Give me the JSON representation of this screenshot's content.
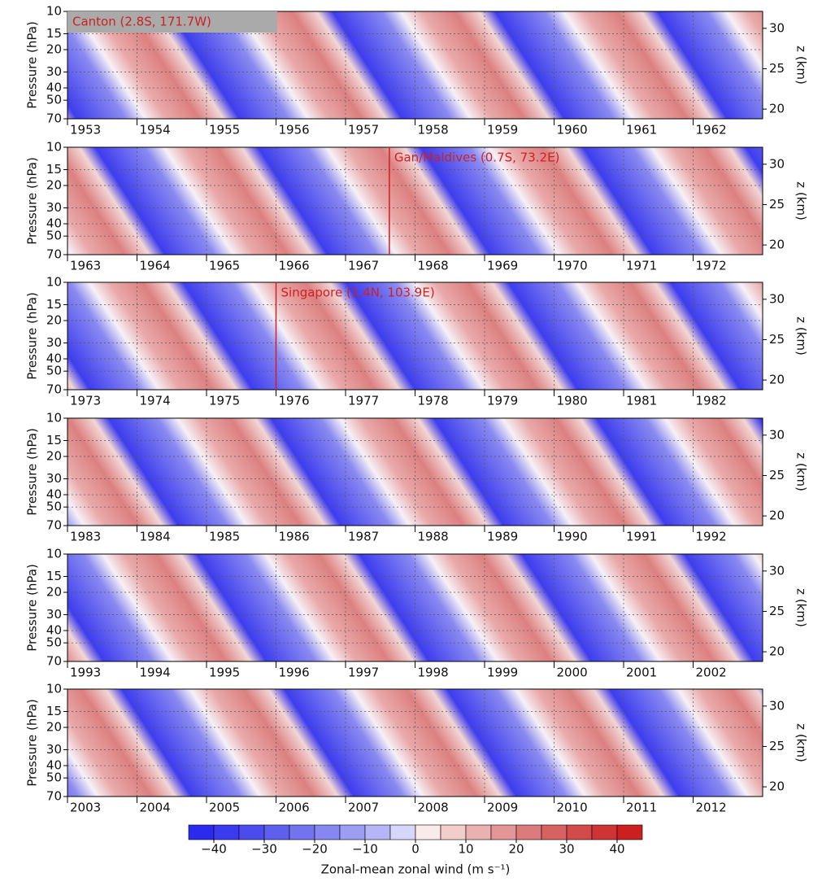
{
  "chart_data": {
    "type": "contour",
    "ylabel": "Pressure (hPa)",
    "y2label": "z (km)",
    "ylim": [
      70,
      10
    ],
    "yticks": [
      10,
      15,
      20,
      30,
      40,
      50,
      70
    ],
    "log_y": true,
    "y2lim": [
      18.8,
      32.1
    ],
    "y2ticks": [
      20,
      25,
      30
    ],
    "grid": true,
    "panels": [
      {
        "xlim": [
          1953,
          1963
        ],
        "xticks": [
          1953,
          1954,
          1955,
          1956,
          1957,
          1958,
          1959,
          1960,
          1961,
          1962
        ],
        "annotation": {
          "text": "Canton (2.8S, 171.7W)",
          "x": 1953,
          "boxed": true
        }
      },
      {
        "xlim": [
          1963,
          1973
        ],
        "xticks": [
          1963,
          1964,
          1965,
          1966,
          1967,
          1968,
          1969,
          1970,
          1971,
          1972
        ],
        "annotation": {
          "text": "Gan/Maldives (0.7S, 73.2E)",
          "x": 1967.63,
          "boxed": false
        }
      },
      {
        "xlim": [
          1973,
          1983
        ],
        "xticks": [
          1973,
          1974,
          1975,
          1976,
          1977,
          1978,
          1979,
          1980,
          1981,
          1982
        ],
        "annotation": {
          "text": "Singapore (1.4N, 103.9E)",
          "x": 1976.0,
          "boxed": false
        }
      },
      {
        "xlim": [
          1983,
          1993
        ],
        "xticks": [
          1983,
          1984,
          1985,
          1986,
          1987,
          1988,
          1989,
          1990,
          1991,
          1992
        ]
      },
      {
        "xlim": [
          1993,
          2003
        ],
        "xticks": [
          1993,
          1994,
          1995,
          1996,
          1997,
          1998,
          1999,
          2000,
          2001,
          2002
        ]
      },
      {
        "xlim": [
          2003,
          2013
        ],
        "xticks": [
          2003,
          2004,
          2005,
          2006,
          2007,
          2008,
          2009,
          2010,
          2011,
          2012
        ]
      }
    ],
    "colorbar": {
      "label": "Zonal-mean zonal wind (m s⁻¹)",
      "levels": [
        -45,
        -40,
        -35,
        -30,
        -25,
        -20,
        -15,
        -10,
        -5,
        0,
        5,
        10,
        15,
        20,
        25,
        30,
        35,
        40,
        45
      ],
      "colors": [
        "#2b2bf0",
        "#3a3aef",
        "#4c4cee",
        "#5f5fee",
        "#7373ef",
        "#8787f1",
        "#9d9df3",
        "#b6b6f6",
        "#d6d6fa",
        "#fbeaea",
        "#f3cccc",
        "#ebb1b1",
        "#e39696",
        "#db7b7b",
        "#d66262",
        "#d24a4a",
        "#cf3434",
        "#cc1f1f"
      ],
      "xticks": [
        {
          "value": -40,
          "label": "−40"
        },
        {
          "value": -30,
          "label": "−30"
        },
        {
          "value": -20,
          "label": "−20"
        },
        {
          "value": -10,
          "label": "−10"
        },
        0,
        10,
        20,
        30,
        40
      ]
    }
  }
}
